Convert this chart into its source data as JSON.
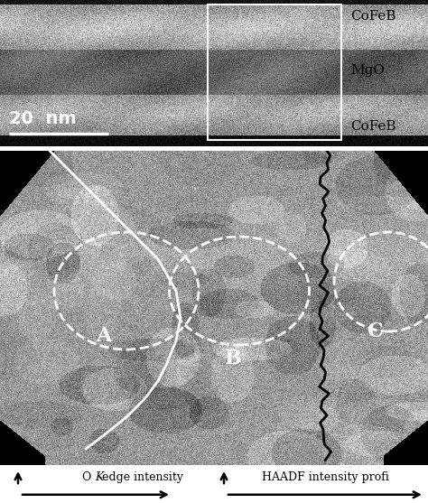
{
  "fig_width": 4.74,
  "fig_height": 5.57,
  "dpi": 100,
  "label_top1": "CoFeB",
  "label_top2": "MgO",
  "label_top3": "CoFeB",
  "scale_bar_label": "20  nm",
  "region_labels": [
    "A",
    "B",
    "C"
  ],
  "bottom_text_left_prefix": "O ",
  "bottom_text_left_k": "K",
  "bottom_text_left_suffix": "-edge intensity",
  "bottom_text_right": "HAADF intensity profi"
}
